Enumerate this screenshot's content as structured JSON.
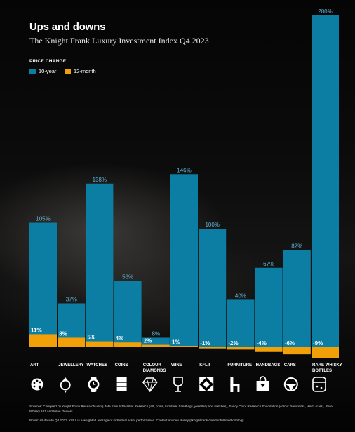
{
  "header": {
    "title": "Ups and downs",
    "subtitle": "The Knight Frank Luxury Investment Index Q4 2023"
  },
  "legend": {
    "title": "PRICE CHANGE",
    "items": [
      {
        "label": "10-year",
        "color": "#0c7da3"
      },
      {
        "label": "12-month",
        "color": "#f2a007"
      }
    ]
  },
  "chart_data": {
    "type": "bar",
    "categories": [
      "ART",
      "JEWELLERY",
      "WATCHES",
      "COINS",
      "COLOUR DIAMONDS",
      "WINE",
      "KFLII",
      "FURNITURE",
      "HANDBAGS",
      "CARS",
      "RARE WHISKY BOTTLES"
    ],
    "series": [
      {
        "name": "10-year",
        "values": [
          105,
          37,
          138,
          56,
          8,
          146,
          100,
          40,
          67,
          82,
          280
        ],
        "labels": [
          "105%",
          "37%",
          "138%",
          "56%",
          "8%",
          "146%",
          "100%",
          "40%",
          "67%",
          "82%",
          "280%"
        ]
      },
      {
        "name": "12-month",
        "values": [
          11,
          8,
          5,
          4,
          2,
          1,
          -1,
          -2,
          -4,
          -6,
          -9
        ],
        "labels": [
          "11%",
          "8%",
          "5%",
          "4%",
          "2%",
          "1%",
          "-1%",
          "-2%",
          "-4%",
          "-6%",
          "-9%"
        ]
      }
    ],
    "icons": [
      "palette-icon",
      "ring-icon",
      "watch-icon",
      "coins-icon",
      "diamond-icon",
      "wine-glass-icon",
      "kflii-icon",
      "chair-icon",
      "handbag-icon",
      "steering-wheel-icon",
      "whisky-bottle-icon"
    ],
    "ylim": [
      -12,
      285
    ]
  },
  "footer": {
    "source": "Sources: Compiled by Knight Frank Research using data from Art Market Research (art, coins, furniture, handbags, jewellery and watches), Fancy Color Research Foundation (colour diamonds), HAGI (cars), Rare Whisky 101 and Wine Owners",
    "note": "Notes: All data to Q4 2023. KFLII is a weighted average of individual asset performance. Contact andrew.shirley@knightfrank.com for full methodology"
  }
}
